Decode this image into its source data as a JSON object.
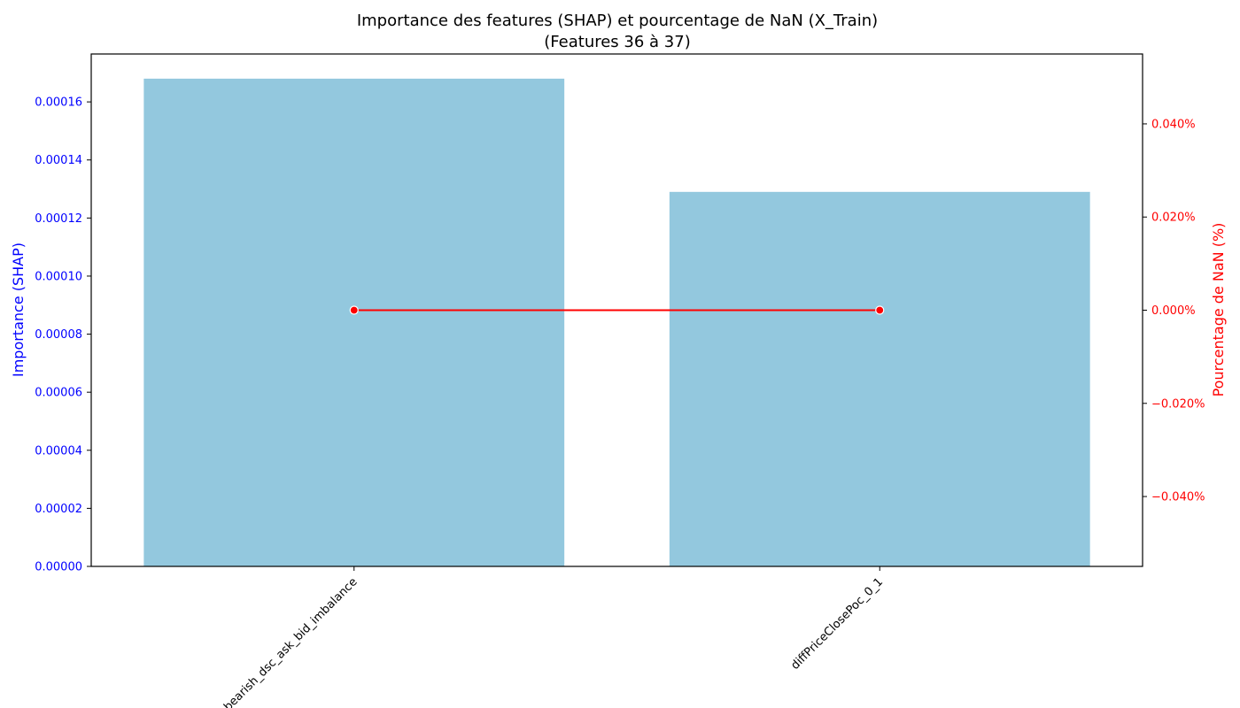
{
  "chart_data": {
    "type": "bar",
    "title": "Importance des features (SHAP) et pourcentage de NaN (X_Train)",
    "subtitle": "(Features 36 à 37)",
    "categories": [
      "bearish_dsc_ask_bid_imbalance",
      "diffPriceClosePoc_0_1"
    ],
    "series": [
      {
        "name": "",
        "axis": "left",
        "type": "bar",
        "values": [
          0.000168,
          0.000129
        ],
        "color": "#93c8de"
      },
      {
        "name": "",
        "axis": "right",
        "type": "line",
        "values": [
          0.0,
          0.0
        ],
        "color": "#ff0000"
      }
    ],
    "ylabel_left": "Importance (SHAP)",
    "ylabel_right": "Pourcentage de NaN (%)",
    "ylim_left": [
      0,
      0.0001765
    ],
    "ylim_right": [
      -0.055,
      0.055
    ],
    "yticks_left": [
      "0.00000",
      "0.00002",
      "0.00004",
      "0.00006",
      "0.00008",
      "0.00010",
      "0.00012",
      "0.00014",
      "0.00016"
    ],
    "yticks_left_values": [
      0,
      2e-05,
      4e-05,
      6e-05,
      8e-05,
      0.0001,
      0.00012,
      0.00014,
      0.00016
    ],
    "yticks_right": [
      "−0.040%",
      "−0.020%",
      "0.000%",
      "0.020%",
      "0.040%"
    ],
    "yticks_right_values": [
      -0.04,
      -0.02,
      0,
      0.02,
      0.04
    ],
    "left_axis_color": "#0000ff",
    "right_axis_color": "#ff0000",
    "grid": false,
    "legend": "none"
  }
}
